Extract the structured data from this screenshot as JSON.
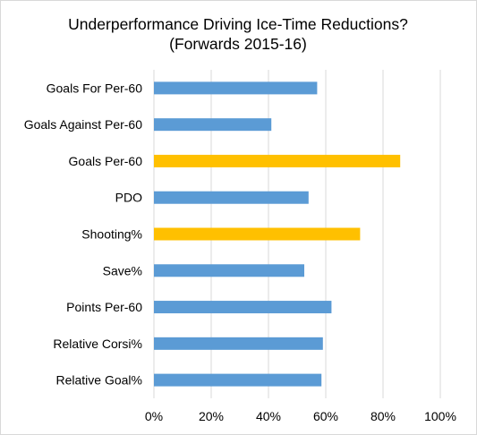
{
  "chart_data": {
    "type": "bar",
    "orientation": "horizontal",
    "title": "Underperformance Driving Ice-Time Reductions?",
    "subtitle": "(Forwards 2015-16)",
    "categories": [
      "Goals For Per-60",
      "Goals Against Per-60",
      "Goals Per-60",
      "PDO",
      "Shooting%",
      "Save%",
      "Points Per-60",
      "Relative Corsi%",
      "Relative Goal%"
    ],
    "values": [
      57,
      41,
      86,
      54,
      72,
      52.5,
      62,
      59,
      58.5
    ],
    "unit": "%",
    "xlim": [
      0,
      100
    ],
    "xticks": [
      "0%",
      "20%",
      "40%",
      "60%",
      "80%",
      "100%"
    ],
    "grid": "vertical",
    "legend": "none",
    "colors": {
      "default": "#5b9bd5",
      "highlight": "#ffc000",
      "gridline": "#d9d9d9"
    },
    "highlighted": [
      "Goals Per-60",
      "Shooting%"
    ]
  }
}
